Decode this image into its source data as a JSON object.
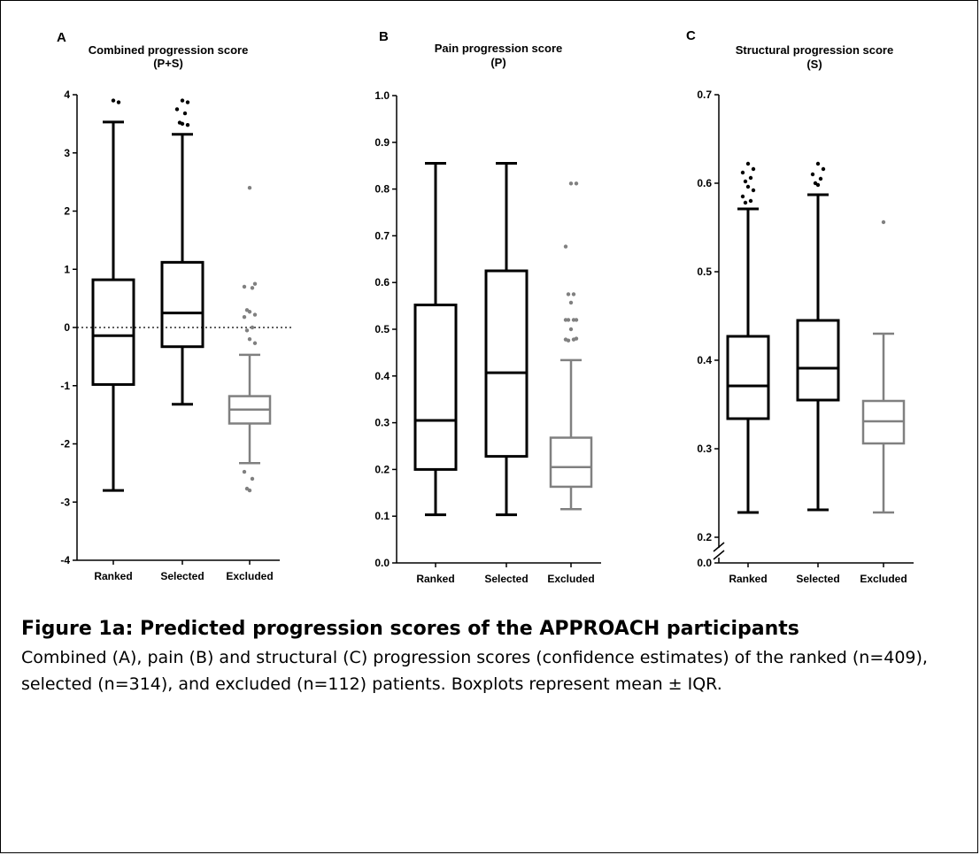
{
  "caption": {
    "title": "Figure 1a: Predicted progression scores of the APPROACH participants",
    "body": "Combined (A), pain (B) and structural (C) progression scores (confidence estimates) of the ranked (n=409), selected (n=314), and excluded (n=112) patients. Boxplots represent mean ± IQR."
  },
  "colors": {
    "dark": "#000000",
    "gray": "#808080"
  },
  "chart_data": [
    {
      "type": "boxplot",
      "panel_letter": "A",
      "title": "Combined progression score",
      "subtitle": "(P+S)",
      "ylim": [
        -4,
        4
      ],
      "yticks": [
        -4,
        -3,
        -2,
        -1,
        0,
        1,
        2,
        3,
        4
      ],
      "reference_line": 0,
      "categories": [
        "Ranked",
        "Selected",
        "Excluded"
      ],
      "boxes": [
        {
          "name": "Ranked",
          "color": "dark",
          "whisker_low": -2.8,
          "q1": -0.98,
          "median": -0.14,
          "q3": 0.82,
          "whisker_high": 3.53,
          "outliers": [
            3.9,
            3.87
          ]
        },
        {
          "name": "Selected",
          "color": "dark",
          "whisker_low": -1.32,
          "q1": -0.33,
          "median": 0.25,
          "q3": 1.12,
          "whisker_high": 3.32,
          "outliers": [
            3.9,
            3.87,
            3.75,
            3.68,
            3.52,
            3.5,
            3.48
          ]
        },
        {
          "name": "Excluded",
          "color": "gray",
          "whisker_low": -2.33,
          "q1": -1.65,
          "median": -1.41,
          "q3": -1.18,
          "whisker_high": -0.47,
          "outliers": [
            2.4,
            0.75,
            0.7,
            0.68,
            0.3,
            0.27,
            0.22,
            0.18,
            0.0,
            -0.05,
            -0.2,
            -0.27,
            -2.48,
            -2.6,
            -2.77,
            -2.8
          ]
        }
      ]
    },
    {
      "type": "boxplot",
      "panel_letter": "B",
      "title": "Pain progression score",
      "subtitle": "(P)",
      "ylim": [
        0,
        1
      ],
      "yticks": [
        "0.0",
        "0.1",
        "0.2",
        "0.3",
        "0.4",
        "0.5",
        "0.6",
        "0.7",
        "0.8",
        "0.9",
        "1.0"
      ],
      "categories": [
        "Ranked",
        "Selected",
        "Excluded"
      ],
      "boxes": [
        {
          "name": "Ranked",
          "color": "dark",
          "whisker_low": 0.103,
          "q1": 0.2,
          "median": 0.305,
          "q3": 0.552,
          "whisker_high": 0.855,
          "outliers": []
        },
        {
          "name": "Selected",
          "color": "dark",
          "whisker_low": 0.103,
          "q1": 0.228,
          "median": 0.407,
          "q3": 0.625,
          "whisker_high": 0.855,
          "outliers": []
        },
        {
          "name": "Excluded",
          "color": "gray",
          "whisker_low": 0.115,
          "q1": 0.163,
          "median": 0.205,
          "q3": 0.268,
          "whisker_high": 0.434,
          "outliers": [
            0.812,
            0.812,
            0.677,
            0.575,
            0.575,
            0.557,
            0.52,
            0.52,
            0.52,
            0.52,
            0.5,
            0.48,
            0.478,
            0.478,
            0.476
          ]
        }
      ]
    },
    {
      "type": "boxplot",
      "panel_letter": "C",
      "title": "Structural progression score",
      "subtitle": "(S)",
      "ylim": [
        0,
        0.7
      ],
      "axis_break": [
        0,
        0.2
      ],
      "yticks": [
        "0.0",
        "0.2",
        "0.3",
        "0.4",
        "0.5",
        "0.6",
        "0.7"
      ],
      "categories": [
        "Ranked",
        "Selected",
        "Excluded"
      ],
      "boxes": [
        {
          "name": "Ranked",
          "color": "dark",
          "whisker_low": 0.228,
          "q1": 0.334,
          "median": 0.371,
          "q3": 0.427,
          "whisker_high": 0.571,
          "outliers": [
            0.622,
            0.616,
            0.612,
            0.606,
            0.602,
            0.596,
            0.592,
            0.585,
            0.58,
            0.578
          ]
        },
        {
          "name": "Selected",
          "color": "dark",
          "whisker_low": 0.231,
          "q1": 0.355,
          "median": 0.391,
          "q3": 0.445,
          "whisker_high": 0.587,
          "outliers": [
            0.622,
            0.616,
            0.61,
            0.605,
            0.6,
            0.598
          ]
        },
        {
          "name": "Excluded",
          "color": "gray",
          "whisker_low": 0.228,
          "q1": 0.306,
          "median": 0.331,
          "q3": 0.354,
          "whisker_high": 0.43,
          "outliers": [
            0.556
          ]
        }
      ]
    }
  ]
}
